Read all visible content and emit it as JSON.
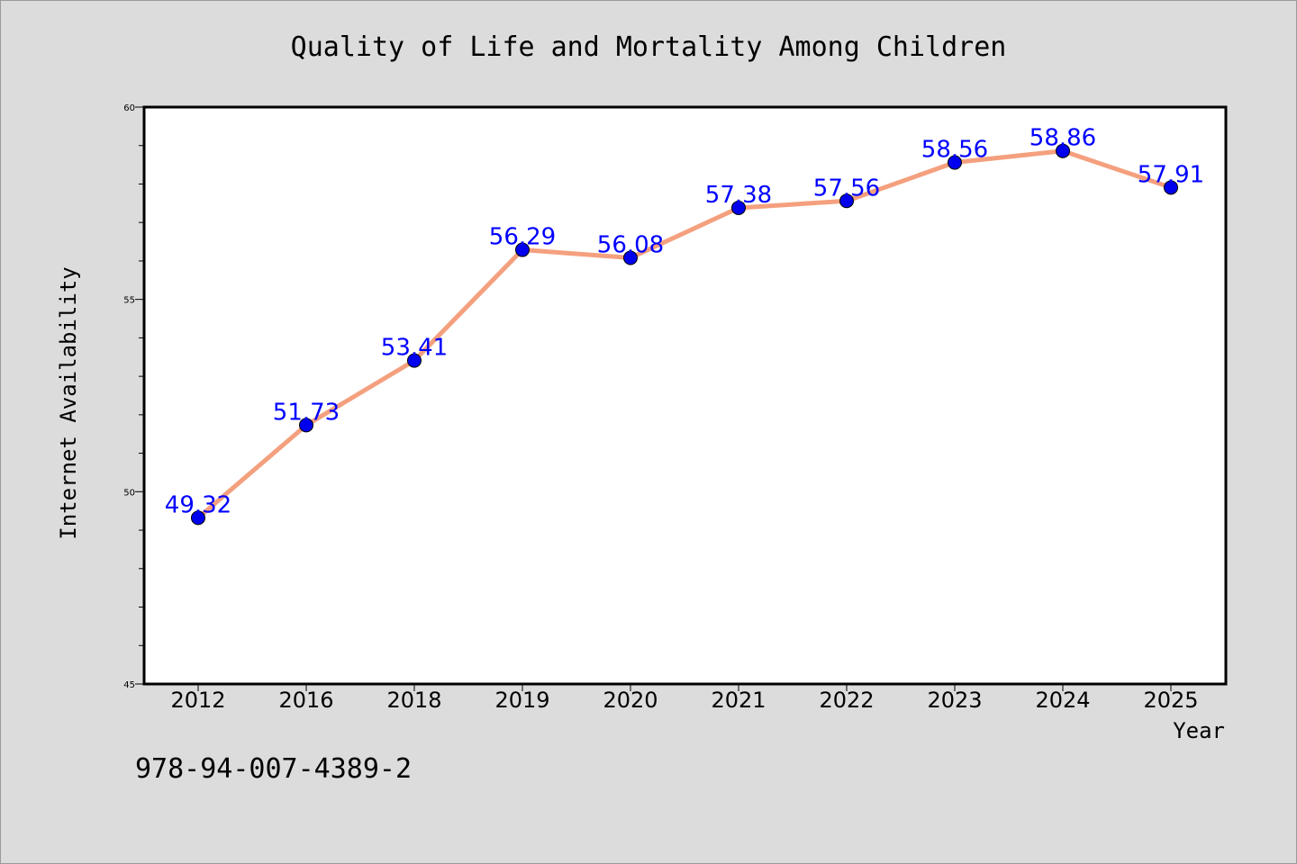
{
  "chart_data": {
    "type": "line",
    "title": "Quality of Life and Mortality Among Children",
    "xlabel": "Year",
    "ylabel": "Internet Availability",
    "categories": [
      "2012",
      "2016",
      "2018",
      "2019",
      "2020",
      "2021",
      "2022",
      "2023",
      "2024",
      "2025"
    ],
    "values": [
      49.32,
      51.73,
      53.41,
      56.29,
      56.08,
      57.38,
      57.56,
      58.56,
      58.86,
      57.91
    ],
    "value_labels": [
      "49.32",
      "51.73",
      "53.41",
      "56.29",
      "56.08",
      "57.38",
      "57.56",
      "58.56",
      "58.86",
      "57.91"
    ],
    "ylim": [
      45,
      60
    ],
    "y_ticks": [
      "45",
      "50",
      "55",
      "60"
    ],
    "grid": false,
    "line_color": "#f4a07e",
    "marker_color": "#0000ee",
    "label_color": "#0000ff"
  },
  "footer": {
    "code": "978-94-007-4389-2"
  }
}
